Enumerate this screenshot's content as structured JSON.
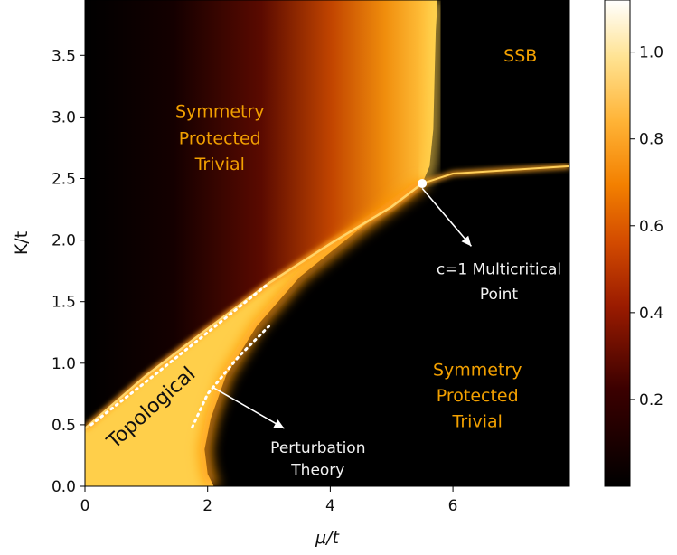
{
  "chart_data": {
    "type": "heatmap",
    "title": "",
    "xlabel": "μ/t",
    "ylabel": "K/t",
    "xlim": [
      0,
      7.9
    ],
    "ylim": [
      0,
      3.95
    ],
    "x_ticks": [
      {
        "value": 0,
        "label": "0"
      },
      {
        "value": 2,
        "label": "2"
      },
      {
        "value": 4,
        "label": "4"
      },
      {
        "value": 6,
        "label": "6"
      }
    ],
    "y_ticks": [
      {
        "value": 0.0,
        "label": "0.0"
      },
      {
        "value": 0.5,
        "label": "0.5"
      },
      {
        "value": 1.0,
        "label": "1.0"
      },
      {
        "value": 1.5,
        "label": "1.5"
      },
      {
        "value": 2.0,
        "label": "2.0"
      },
      {
        "value": 2.5,
        "label": "2.5"
      },
      {
        "value": 3.0,
        "label": "3.0"
      },
      {
        "value": 3.5,
        "label": "3.5"
      }
    ],
    "colorbar": {
      "colormap": "afmhot",
      "range": [
        0,
        1.12
      ],
      "ticks": [
        {
          "value": 0.2,
          "label": "0.2"
        },
        {
          "value": 0.4,
          "label": "0.4"
        },
        {
          "value": 0.6,
          "label": "0.6"
        },
        {
          "value": 0.8,
          "label": "0.8"
        },
        {
          "value": 1.0,
          "label": "1.0"
        }
      ]
    },
    "phase_boundary": {
      "lower_left_curve": [
        [
          0,
          0.47
        ],
        [
          1,
          0.9
        ],
        [
          2,
          1.28
        ],
        [
          3,
          1.65
        ],
        [
          4,
          1.97
        ],
        [
          5,
          2.27
        ],
        [
          5.5,
          2.46
        ]
      ],
      "spt_ssb_vertical": [
        [
          5.5,
          2.46
        ],
        [
          5.75,
          3.95
        ]
      ],
      "ssb_lower_line": [
        [
          5.5,
          2.46
        ],
        [
          6.0,
          2.54
        ],
        [
          7.9,
          2.6
        ]
      ]
    },
    "multicritical_point": {
      "x": 5.5,
      "y": 2.46
    },
    "perturbation_lines": [
      [
        [
          0.1,
          0.5
        ],
        [
          1.0,
          0.85
        ],
        [
          2.0,
          1.25
        ],
        [
          3.0,
          1.65
        ]
      ],
      [
        [
          1.75,
          0.48
        ],
        [
          2.0,
          0.75
        ],
        [
          2.5,
          1.05
        ],
        [
          3.0,
          1.3
        ]
      ]
    ],
    "annotations": [
      {
        "text": "Symmetry",
        "x": 2.2,
        "y": 3.0,
        "color": "orange"
      },
      {
        "text": "Protected",
        "x": 2.2,
        "y": 2.78,
        "color": "orange"
      },
      {
        "text": "Trivial",
        "x": 2.2,
        "y": 2.57,
        "color": "orange"
      },
      {
        "text": "SSB",
        "x": 7.1,
        "y": 3.45,
        "color": "orange"
      },
      {
        "text": "c=1 Multicritical",
        "x": 6.75,
        "y": 1.72,
        "color": "white"
      },
      {
        "text": "Point",
        "x": 6.75,
        "y": 1.52,
        "color": "white"
      },
      {
        "text": "Symmetry",
        "x": 6.4,
        "y": 0.9,
        "color": "orange"
      },
      {
        "text": "Protected",
        "x": 6.4,
        "y": 0.69,
        "color": "orange"
      },
      {
        "text": "Trivial",
        "x": 6.4,
        "y": 0.48,
        "color": "orange"
      },
      {
        "text": "Perturbation",
        "x": 3.8,
        "y": 0.27,
        "color": "white"
      },
      {
        "text": "Theory",
        "x": 3.8,
        "y": 0.09,
        "color": "white"
      },
      {
        "text": "Topological",
        "x": 1.15,
        "y": 0.6,
        "color": "dark"
      }
    ]
  }
}
